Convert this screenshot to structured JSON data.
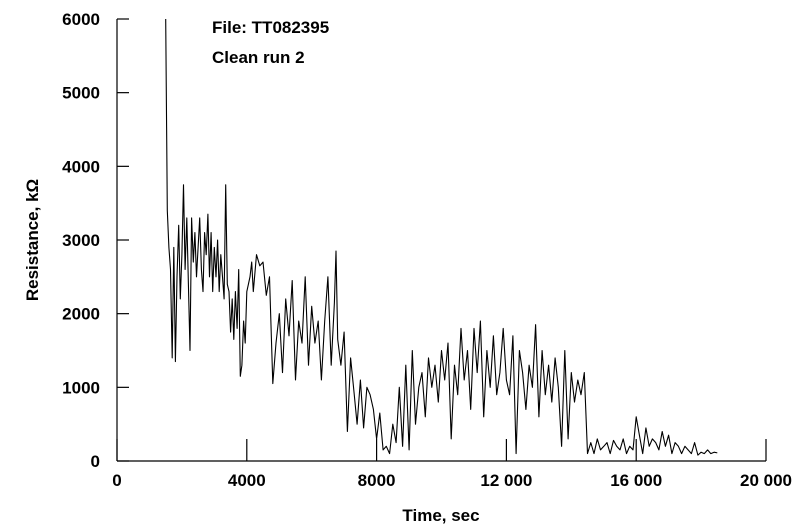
{
  "chart_data": {
    "type": "line",
    "title": "",
    "annotation": [
      "File: TT082395",
      "Clean run 2"
    ],
    "xlabel": "Time, sec",
    "ylabel": "Resistance, kΩ",
    "xlim": [
      0,
      20000
    ],
    "ylim": [
      0,
      6000
    ],
    "x_ticks": [
      0,
      4000,
      8000,
      12000,
      16000,
      20000
    ],
    "x_tick_labels": [
      "0",
      "4000",
      "8000",
      "12 000",
      "16 000",
      "20 000"
    ],
    "y_ticks": [
      0,
      1000,
      2000,
      3000,
      4000,
      5000,
      6000
    ],
    "y_tick_labels": [
      "0",
      "1000",
      "2000",
      "3000",
      "4000",
      "5000",
      "6000"
    ],
    "grid": false,
    "legend": "none",
    "line_color": "#000000",
    "series": [
      {
        "x": [
          1500,
          1550,
          1600,
          1650,
          1700,
          1750,
          1800,
          1850,
          1900,
          1950,
          2000,
          2050,
          2100,
          2150,
          2200,
          2250,
          2300,
          2350,
          2400,
          2450,
          2500,
          2550,
          2600,
          2650,
          2700,
          2750,
          2800,
          2850,
          2900,
          2950,
          3000,
          3050,
          3100,
          3150,
          3200,
          3250,
          3300,
          3350,
          3400,
          3450,
          3500,
          3550,
          3600,
          3650,
          3700,
          3750,
          3800,
          3850,
          3900,
          3950,
          4000,
          4050,
          4100,
          4150,
          4200,
          4300,
          4400,
          4500,
          4600,
          4700,
          4800,
          4900,
          5000,
          5100,
          5200,
          5300,
          5400,
          5500,
          5600,
          5700,
          5800,
          5900,
          6000,
          6100,
          6200,
          6300,
          6400,
          6500,
          6600,
          6700,
          6750,
          6800,
          6900,
          7000,
          7100,
          7200,
          7300,
          7400,
          7500,
          7600,
          7700,
          7800,
          7900,
          8000,
          8100,
          8200,
          8300,
          8400,
          8500,
          8600,
          8700,
          8800,
          8900,
          9000,
          9100,
          9200,
          9300,
          9400,
          9500,
          9600,
          9700,
          9800,
          9900,
          10000,
          10100,
          10200,
          10300,
          10400,
          10500,
          10600,
          10700,
          10800,
          10900,
          11000,
          11100,
          11200,
          11300,
          11400,
          11500,
          11600,
          11700,
          11800,
          11900,
          12000,
          12100,
          12200,
          12300,
          12400,
          12500,
          12600,
          12700,
          12800,
          12900,
          13000,
          13100,
          13200,
          13300,
          13400,
          13500,
          13600,
          13700,
          13800,
          13900,
          14000,
          14100,
          14200,
          14300,
          14400,
          14500,
          14600,
          14700,
          14800,
          14900,
          15000,
          15100,
          15200,
          15300,
          15400,
          15500,
          15600,
          15700,
          15800,
          15900,
          16000,
          16100,
          16200,
          16300,
          16400,
          16500,
          16600,
          16700,
          16800,
          16900,
          17000,
          17100,
          17200,
          17300,
          17400,
          17500,
          17600,
          17700,
          17800,
          17900,
          18000,
          18100,
          18200,
          18300,
          18400,
          18500
        ],
        "y": [
          6000,
          3400,
          2900,
          2600,
          1400,
          2900,
          1350,
          2500,
          3200,
          2200,
          2800,
          3750,
          2600,
          3300,
          2400,
          1500,
          3300,
          2700,
          3100,
          2500,
          2900,
          3300,
          2600,
          2300,
          3100,
          2800,
          3350,
          2500,
          3100,
          2300,
          2900,
          2500,
          3000,
          2300,
          2800,
          2500,
          2200,
          3750,
          2400,
          2300,
          1750,
          2200,
          1650,
          2300,
          1800,
          2600,
          1150,
          1300,
          1900,
          1600,
          2300,
          2400,
          2500,
          2700,
          2300,
          2800,
          2650,
          2700,
          2250,
          2500,
          1050,
          1600,
          2000,
          1200,
          2200,
          1700,
          2450,
          1100,
          1900,
          1600,
          2500,
          1300,
          2100,
          1600,
          1900,
          1100,
          1900,
          2500,
          1300,
          2150,
          2850,
          1650,
          1300,
          1750,
          400,
          1400,
          950,
          500,
          1100,
          450,
          1000,
          900,
          700,
          300,
          650,
          150,
          200,
          100,
          500,
          250,
          1000,
          200,
          1300,
          150,
          1500,
          500,
          1000,
          1200,
          600,
          1400,
          1000,
          1300,
          800,
          1500,
          1100,
          1600,
          300,
          1300,
          900,
          1800,
          1100,
          1500,
          700,
          1800,
          1200,
          1900,
          600,
          1500,
          1000,
          1700,
          900,
          1200,
          1800,
          1100,
          900,
          1700,
          100,
          1500,
          1200,
          700,
          1300,
          1000,
          1850,
          600,
          1500,
          900,
          1300,
          800,
          1400,
          1000,
          200,
          1500,
          300,
          1200,
          800,
          1100,
          900,
          1200,
          100,
          250,
          100,
          300,
          150,
          200,
          250,
          100,
          280,
          200,
          150,
          300,
          100,
          200,
          150,
          600,
          350,
          100,
          450,
          200,
          300,
          250,
          150,
          400,
          200,
          350,
          100,
          250,
          200,
          100,
          200,
          150,
          100,
          250,
          80,
          120,
          100,
          150,
          100,
          120,
          110
        ]
      }
    ]
  }
}
